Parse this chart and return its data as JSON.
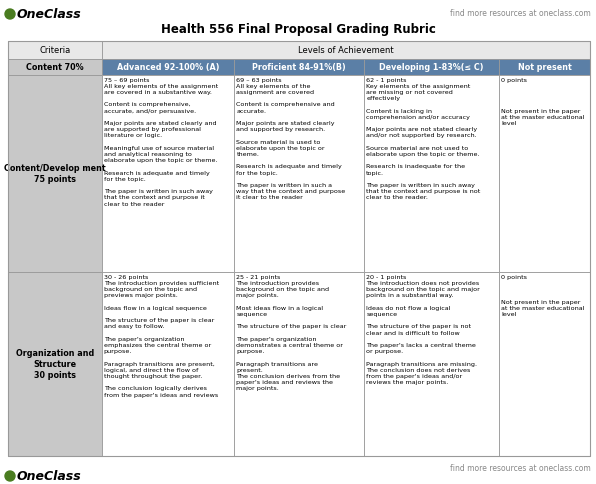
{
  "title": "Health 556 Final Proposal Grading Rubric",
  "header1_criteria": "Criteria",
  "header1_levels": "Levels of Achievement",
  "header2_cols": [
    "Content 70%",
    "Advanced 92-100% (A)",
    "Proficient 84-91%(B)",
    "Developing 1-83%(≤ C)",
    "Not present"
  ],
  "row1_criteria": "Content/Develop ment\n75 points",
  "row1_col1": "75 – 69 points\nAll key elements of the assignment\nare covered in a substantive way.\n\nContent is comprehensive,\naccurate, and/or persuasive.\n\nMajor points are stated clearly and\nare supported by professional\nliterature or logic.\n\nMeaningful use of source material\nand analytical reasoning to\nelaborate upon the topic or theme.\n\nResearch is adequate and timely\nfor the topic.\n\nThe paper is written in such away\nthat the context and purpose it\nclear to the reader",
  "row1_col2": "69 – 63 points\nAll key elements of the\nassignment are covered\n\nContent is comprehensive and\naccurate.\n\nMajor points are stated clearly\nand supported by research.\n\nSource material is used to\nelaborate upon the topic or\ntheme.\n\nResearch is adequate and timely\nfor the topic.\n\nThe paper is written in such a\nway that the context and purpose\nit clear to the reader",
  "row1_col3": "62 - 1 points\nKey elements of the assignment\nare missing or not covered\neffectively\n\nContent is lacking in\ncomprehension and/or accuracy\n\nMajor points are not stated clearly\nand/or not supported by research.\n\nSource material are not used to\nelaborate upon the topic or theme.\n\nResearch is inadequate for the\ntopic.\n\nThe paper is written in such away\nthat the context and purpose is not\nclear to the reader.",
  "row1_col4": "0 points\n\n\n\n\nNot present in the paper\nat the master educational\nlevel",
  "row2_criteria": "Organization and\nStructure\n30 points",
  "row2_col1": "30 - 26 points\nThe introduction provides sufficient\nbackground on the topic and\npreviews major points.\n\nIdeas flow in a logical sequence\n\nThe structure of the paper is clear\nand easy to follow.\n\nThe paper's organization\nemphasizes the central theme or\npurpose.\n\nParagraph transitions are present,\nlogical, and direct the flow of\nthought throughout the paper.\n\nThe conclusion logically derives\nfrom the paper's ideas and reviews",
  "row2_col2": "25 - 21 points\nThe introduction provides\nbackground on the topic and\nmajor points.\n\nMost ideas flow in a logical\nsequence\n\nThe structure of the paper is clear\n\nThe paper's organization\ndemonstrates a central theme or\npurpose.\n\nParagraph transitions are\npresent.\nThe conclusion derives from the\npaper's ideas and reviews the\nmajor points.",
  "row2_col3": "20 - 1 points\nThe introduction does not provides\nbackground on the topic and major\npoints in a substantial way.\n\nIdeas do not flow a logical\nsequence\n\nThe structure of the paper is not\nclear and is difficult to follow\n\nThe paper's lacks a central theme\nor purpose.\n\nParagraph transitions are missing.\nThe conclusion does not derives\nfrom the paper's ideas and/or\nreviews the major points.",
  "row2_col4": "0 points\n\n\n\nNot present in the paper\nat the master educational\nlevel",
  "logo_green": "#4a7c20",
  "bg_white": "#ffffff",
  "header1_bg": "#e8e8e8",
  "criteria_col_bg": "#c8c8c8",
  "subheader_row_bg": "#5b7fa6",
  "subheader_text_color": "#ffffff",
  "data_cell_bg": "#ffffff",
  "border_color": "#999999",
  "title_fontsize": 8.5,
  "cell_fontsize": 4.6,
  "header_fontsize": 6.0,
  "subheader_fontsize": 5.8,
  "logo_fontsize": 9,
  "footer_fontsize": 5.5
}
